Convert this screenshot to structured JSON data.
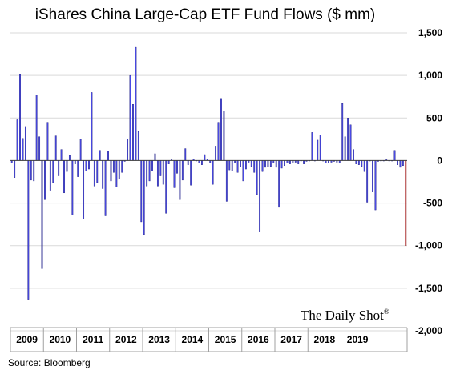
{
  "chart_data": {
    "type": "bar",
    "title": "iShares China Large-Cap ETF Fund Flows ($ mm)",
    "source": "Source: Bloomberg",
    "brand": "The Daily Shot",
    "brand_mark": "®",
    "ylim": [
      -2000,
      1500
    ],
    "yticks": [
      1500,
      1000,
      500,
      0,
      -500,
      -1000,
      -1500,
      -2000
    ],
    "ytick_labels": [
      "1,500",
      "1,000",
      "500",
      "0",
      "-500",
      "-1,000",
      "-1,500",
      "-2,000"
    ],
    "grid": true,
    "x_unit": "month",
    "start": "2009-01",
    "years": [
      "2009",
      "2010",
      "2011",
      "2012",
      "2013",
      "2014",
      "2015",
      "2016",
      "2017",
      "2018",
      "2019"
    ],
    "bar_color": "#4b4be6",
    "highlight_color": "#e01010",
    "highlight_last": true,
    "values": [
      -30,
      -200,
      480,
      1010,
      260,
      400,
      -1630,
      -230,
      -240,
      770,
      280,
      -1270,
      -460,
      450,
      -350,
      -260,
      290,
      -180,
      130,
      -380,
      -130,
      60,
      -640,
      -40,
      -190,
      250,
      -690,
      -120,
      -100,
      800,
      -300,
      -260,
      120,
      -330,
      -650,
      110,
      -240,
      -140,
      -310,
      -220,
      -140,
      -10,
      250,
      1000,
      660,
      1330,
      340,
      -720,
      -870,
      -300,
      -240,
      -120,
      80,
      -300,
      -180,
      -280,
      -620,
      -40,
      10,
      -320,
      -150,
      -460,
      -230,
      140,
      -50,
      -290,
      20,
      0,
      -30,
      -50,
      70,
      20,
      -30,
      -280,
      170,
      450,
      730,
      580,
      -480,
      -110,
      -120,
      -30,
      -140,
      -70,
      -240,
      -100,
      -20,
      -70,
      -140,
      -400,
      -840,
      -130,
      -80,
      -70,
      -70,
      -30,
      -80,
      -550,
      -90,
      -60,
      -30,
      -40,
      -30,
      -20,
      -40,
      0,
      -40,
      -10,
      0,
      330,
      0,
      240,
      300,
      0,
      -30,
      -30,
      -20,
      -10,
      -20,
      -30,
      670,
      280,
      500,
      420,
      130,
      -40,
      -50,
      -70,
      -130,
      -490,
      0,
      -370,
      -580,
      -10,
      0,
      0,
      10,
      0,
      0,
      120,
      -50,
      -80,
      -60,
      -1000
    ]
  }
}
